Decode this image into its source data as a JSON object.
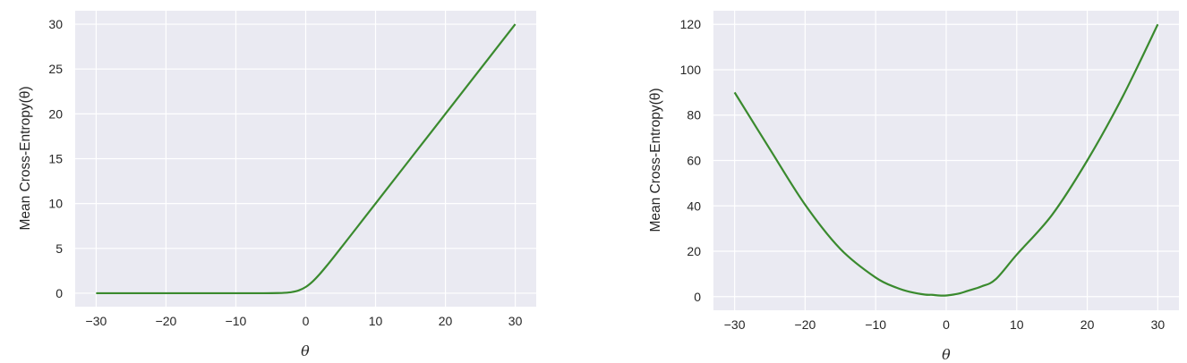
{
  "chart_data": [
    {
      "type": "line",
      "xlabel": "θ",
      "ylabel": "Mean Cross-Entropy(θ)",
      "xlim": [
        -33,
        33
      ],
      "ylim": [
        -1.5,
        31.5
      ],
      "xticks": [
        -30,
        -20,
        -10,
        0,
        10,
        20,
        30
      ],
      "xtick_labels": [
        "−30",
        "−20",
        "−10",
        "0",
        "10",
        "20",
        "30"
      ],
      "yticks": [
        0,
        5,
        10,
        15,
        20,
        25,
        30
      ],
      "ytick_labels": [
        "0",
        "5",
        "10",
        "15",
        "20",
        "25",
        "30"
      ],
      "grid": true,
      "series": [
        {
          "color": "#3a8a2e",
          "x": [
            -30,
            -25,
            -20,
            -15,
            -10,
            -6,
            -4,
            -3,
            -2,
            -1,
            0,
            1,
            2,
            3,
            4,
            5,
            6,
            8,
            10,
            12,
            15,
            18,
            20,
            22,
            25,
            28,
            30
          ],
          "y": [
            0,
            0,
            0,
            0,
            0,
            0.0025,
            0.018,
            0.049,
            0.127,
            0.313,
            0.693,
            1.313,
            2.127,
            3.049,
            4.018,
            5.007,
            6.002,
            8,
            10,
            12,
            15,
            18,
            20,
            22,
            25,
            28,
            30
          ]
        }
      ]
    },
    {
      "type": "line",
      "xlabel": "θ",
      "ylabel": "Mean Cross-Entropy(θ)",
      "xlim": [
        -33,
        33
      ],
      "ylim": [
        -6,
        126
      ],
      "xticks": [
        -30,
        -20,
        -10,
        0,
        10,
        20,
        30
      ],
      "xtick_labels": [
        "−30",
        "−20",
        "−10",
        "0",
        "10",
        "20",
        "30"
      ],
      "yticks": [
        0,
        20,
        40,
        60,
        80,
        100,
        120
      ],
      "ytick_labels": [
        "0",
        "20",
        "40",
        "60",
        "80",
        "100",
        "120"
      ],
      "grid": true,
      "series": [
        {
          "color": "#3a8a2e",
          "x": [
            -30,
            -25,
            -20,
            -15,
            -10,
            -7,
            -5,
            -3,
            -2,
            -1,
            0,
            1,
            2,
            3,
            5,
            7,
            10,
            15,
            20,
            25,
            30
          ],
          "y": [
            90,
            65,
            40.5,
            21,
            8.4,
            3.9,
            2.0,
            0.9,
            0.8,
            0.5,
            0.5,
            0.9,
            1.5,
            2.5,
            4.5,
            7.6,
            18.5,
            36,
            60,
            88,
            120
          ]
        }
      ]
    }
  ]
}
